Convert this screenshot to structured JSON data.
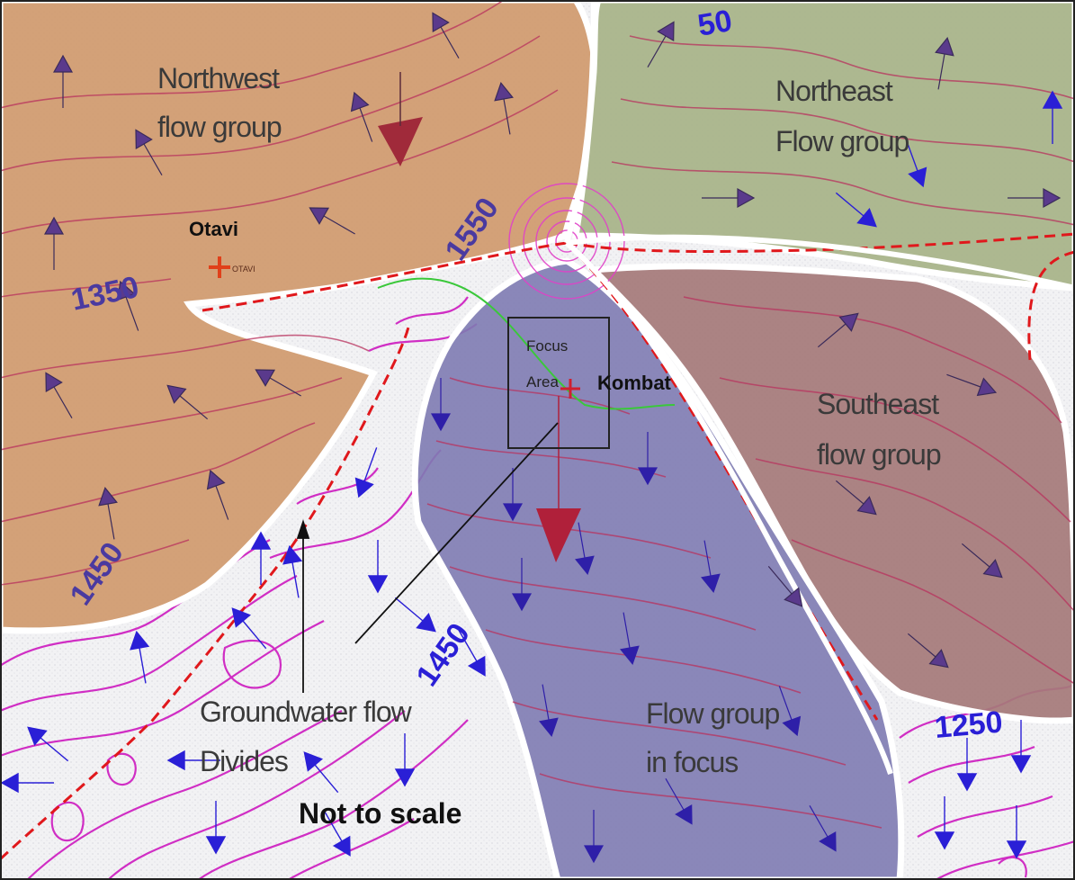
{
  "map": {
    "regions": {
      "northwest": {
        "label_1": "Northwest",
        "label_2": "flow group",
        "color": "#d09a6c"
      },
      "northeast": {
        "label_1": "Northeast",
        "label_2": "Flow group",
        "color": "#a9b48a"
      },
      "southeast": {
        "label_1": "Southeast",
        "label_2": "flow group",
        "color": "#b07a76"
      },
      "focus_group": {
        "label_1": "Flow group",
        "label_2": "in focus",
        "color": "#7e7bb2"
      }
    },
    "towns": {
      "otavi": {
        "label": "Otavi",
        "marker_text": "OTAVI"
      },
      "kombat": {
        "label": "Kombat"
      }
    },
    "focus_area": {
      "label_1": "Focus",
      "label_2": "Area"
    },
    "contour_labels": {
      "c1350": "1350",
      "c1450_west": "1450",
      "c1550": "1550",
      "c1450_center": "1450",
      "c1250": "1250",
      "c_partial_top": "50"
    },
    "divides": {
      "label_1": "Groundwater flow",
      "label_2": "Divides"
    },
    "scale_note": "Not to scale",
    "colors": {
      "contour": "#d02ec4",
      "flow_arrow_blue": "#2a1fd6",
      "flow_arrow_purple": "#5a3a8c",
      "divide_line": "#e0181c",
      "boundary": "#ffffff"
    }
  }
}
